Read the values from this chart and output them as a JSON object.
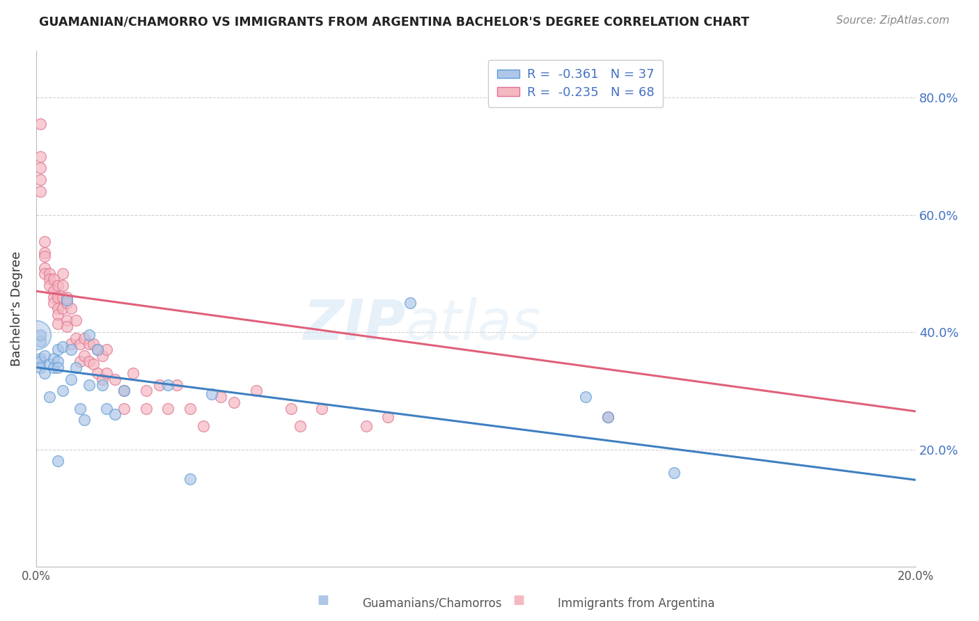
{
  "title": "GUAMANIAN/CHAMORRO VS IMMIGRANTS FROM ARGENTINA BACHELOR'S DEGREE CORRELATION CHART",
  "source": "Source: ZipAtlas.com",
  "ylabel": "Bachelor's Degree",
  "x_min": 0.0,
  "x_max": 0.2,
  "y_min": 0.0,
  "y_max": 0.88,
  "y_ticks": [
    0.2,
    0.4,
    0.6,
    0.8
  ],
  "y_tick_labels": [
    "20.0%",
    "40.0%",
    "60.0%",
    "80.0%"
  ],
  "x_ticks": [
    0.0,
    0.05,
    0.1,
    0.15,
    0.2
  ],
  "x_tick_labels": [
    "0.0%",
    "",
    "",
    "",
    "20.0%"
  ],
  "blue_R": -0.361,
  "blue_N": 37,
  "pink_R": -0.235,
  "pink_N": 68,
  "blue_label": "Guamanians/Chamorros",
  "pink_label": "Immigrants from Argentina",
  "blue_color": "#aec6e8",
  "pink_color": "#f4b8c1",
  "blue_edge_color": "#5b9bd5",
  "pink_edge_color": "#e07090",
  "blue_line_color": "#3f7fc1",
  "pink_line_color": "#e0607a",
  "watermark_zip": "ZIP",
  "watermark_atlas": "atlas",
  "legend_R_color": "#000000",
  "legend_val_color": "#4472c4",
  "blue_scatter_x": [
    0.001,
    0.001,
    0.001,
    0.001,
    0.001,
    0.002,
    0.002,
    0.003,
    0.003,
    0.004,
    0.004,
    0.005,
    0.005,
    0.005,
    0.005,
    0.006,
    0.006,
    0.007,
    0.008,
    0.008,
    0.009,
    0.01,
    0.011,
    0.012,
    0.012,
    0.014,
    0.015,
    0.016,
    0.018,
    0.02,
    0.03,
    0.035,
    0.04,
    0.085,
    0.125,
    0.13,
    0.145
  ],
  "blue_scatter_y": [
    0.385,
    0.355,
    0.35,
    0.34,
    0.395,
    0.36,
    0.33,
    0.345,
    0.29,
    0.355,
    0.34,
    0.18,
    0.37,
    0.35,
    0.34,
    0.3,
    0.375,
    0.455,
    0.32,
    0.37,
    0.34,
    0.27,
    0.25,
    0.31,
    0.395,
    0.37,
    0.31,
    0.27,
    0.26,
    0.3,
    0.31,
    0.15,
    0.295,
    0.45,
    0.29,
    0.255,
    0.16
  ],
  "pink_scatter_x": [
    0.001,
    0.001,
    0.001,
    0.001,
    0.001,
    0.002,
    0.002,
    0.002,
    0.002,
    0.002,
    0.003,
    0.003,
    0.003,
    0.004,
    0.004,
    0.004,
    0.004,
    0.005,
    0.005,
    0.005,
    0.005,
    0.005,
    0.006,
    0.006,
    0.006,
    0.006,
    0.007,
    0.007,
    0.007,
    0.007,
    0.008,
    0.008,
    0.009,
    0.009,
    0.01,
    0.01,
    0.011,
    0.011,
    0.012,
    0.012,
    0.013,
    0.013,
    0.014,
    0.014,
    0.015,
    0.015,
    0.016,
    0.016,
    0.018,
    0.02,
    0.02,
    0.022,
    0.025,
    0.025,
    0.028,
    0.03,
    0.032,
    0.035,
    0.038,
    0.042,
    0.045,
    0.05,
    0.058,
    0.06,
    0.065,
    0.075,
    0.08,
    0.13
  ],
  "pink_scatter_y": [
    0.755,
    0.7,
    0.68,
    0.66,
    0.64,
    0.555,
    0.535,
    0.53,
    0.51,
    0.5,
    0.5,
    0.49,
    0.48,
    0.47,
    0.49,
    0.46,
    0.45,
    0.48,
    0.46,
    0.44,
    0.43,
    0.415,
    0.5,
    0.48,
    0.46,
    0.44,
    0.46,
    0.45,
    0.42,
    0.41,
    0.44,
    0.38,
    0.42,
    0.39,
    0.38,
    0.35,
    0.39,
    0.36,
    0.38,
    0.35,
    0.38,
    0.345,
    0.37,
    0.33,
    0.36,
    0.32,
    0.37,
    0.33,
    0.32,
    0.3,
    0.27,
    0.33,
    0.3,
    0.27,
    0.31,
    0.27,
    0.31,
    0.27,
    0.24,
    0.29,
    0.28,
    0.3,
    0.27,
    0.24,
    0.27,
    0.24,
    0.255,
    0.255
  ],
  "blue_trend_x": [
    0.0,
    0.2
  ],
  "blue_trend_y": [
    0.34,
    0.148
  ],
  "pink_trend_x": [
    0.0,
    0.2
  ],
  "pink_trend_y": [
    0.47,
    0.265
  ]
}
